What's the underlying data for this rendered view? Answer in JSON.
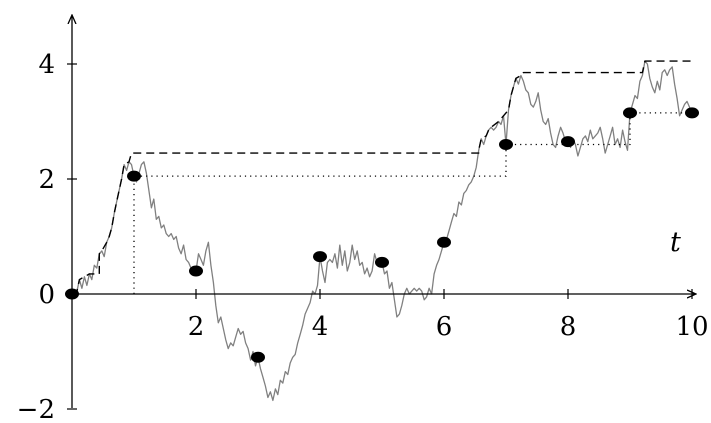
{
  "chart_data": {
    "type": "line",
    "xlabel": "t",
    "ylabel": "",
    "xlim": [
      0,
      10
    ],
    "ylim": [
      -2,
      4.8
    ],
    "x_ticks": [
      {
        "value": 2,
        "label": "2"
      },
      {
        "value": 4,
        "label": "4"
      },
      {
        "value": 6,
        "label": "6"
      },
      {
        "value": 8,
        "label": "8"
      },
      {
        "value": 10,
        "label": "10"
      }
    ],
    "y_ticks": [
      {
        "value": -2,
        "label": "−2"
      },
      {
        "value": 0,
        "label": "0"
      },
      {
        "value": 2,
        "label": "2"
      },
      {
        "value": 4,
        "label": "4"
      }
    ],
    "series": [
      {
        "style": "solid",
        "color": "#808080",
        "points": [
          [
            0,
            0
          ],
          [
            0.08,
            0.05
          ],
          [
            0.12,
            0.25
          ],
          [
            0.16,
            0.1
          ],
          [
            0.2,
            0.3
          ],
          [
            0.24,
            0.15
          ],
          [
            0.28,
            0.35
          ],
          [
            0.32,
            0.25
          ],
          [
            0.36,
            0.5
          ],
          [
            0.4,
            0.45
          ],
          [
            0.44,
            0.7
          ],
          [
            0.48,
            0.75
          ],
          [
            0.52,
            0.65
          ],
          [
            0.56,
            0.9
          ],
          [
            0.6,
            1.0
          ],
          [
            0.64,
            1.15
          ],
          [
            0.68,
            1.4
          ],
          [
            0.72,
            1.6
          ],
          [
            0.76,
            1.8
          ],
          [
            0.8,
            2.0
          ],
          [
            0.84,
            2.25
          ],
          [
            0.88,
            2.15
          ],
          [
            0.92,
            2.3
          ],
          [
            0.96,
            2.25
          ],
          [
            1.0,
            2.05
          ],
          [
            1.04,
            1.95
          ],
          [
            1.08,
            2.1
          ],
          [
            1.12,
            2.25
          ],
          [
            1.16,
            2.3
          ],
          [
            1.2,
            2.1
          ],
          [
            1.24,
            1.8
          ],
          [
            1.28,
            1.5
          ],
          [
            1.32,
            1.65
          ],
          [
            1.36,
            1.3
          ],
          [
            1.4,
            1.35
          ],
          [
            1.44,
            1.15
          ],
          [
            1.48,
            1.2
          ],
          [
            1.52,
            1.05
          ],
          [
            1.56,
            1.0
          ],
          [
            1.6,
            1.05
          ],
          [
            1.64,
            0.95
          ],
          [
            1.68,
            1.0
          ],
          [
            1.72,
            0.8
          ],
          [
            1.76,
            0.7
          ],
          [
            1.8,
            0.85
          ],
          [
            1.84,
            0.6
          ],
          [
            1.88,
            0.55
          ],
          [
            1.92,
            0.45
          ],
          [
            1.96,
            0.45
          ],
          [
            2.0,
            0.4
          ],
          [
            2.04,
            0.7
          ],
          [
            2.08,
            0.6
          ],
          [
            2.12,
            0.5
          ],
          [
            2.16,
            0.75
          ],
          [
            2.2,
            0.9
          ],
          [
            2.24,
            0.5
          ],
          [
            2.28,
            0.2
          ],
          [
            2.32,
            -0.2
          ],
          [
            2.36,
            -0.5
          ],
          [
            2.4,
            -0.4
          ],
          [
            2.44,
            -0.6
          ],
          [
            2.48,
            -0.8
          ],
          [
            2.52,
            -0.95
          ],
          [
            2.56,
            -0.85
          ],
          [
            2.6,
            -0.9
          ],
          [
            2.64,
            -0.75
          ],
          [
            2.68,
            -0.6
          ],
          [
            2.72,
            -0.7
          ],
          [
            2.76,
            -0.65
          ],
          [
            2.8,
            -0.85
          ],
          [
            2.84,
            -0.95
          ],
          [
            2.88,
            -1.15
          ],
          [
            2.92,
            -1.0
          ],
          [
            2.96,
            -1.25
          ],
          [
            3.0,
            -1.1
          ],
          [
            3.04,
            -1.3
          ],
          [
            3.08,
            -1.45
          ],
          [
            3.12,
            -1.6
          ],
          [
            3.16,
            -1.8
          ],
          [
            3.2,
            -1.7
          ],
          [
            3.24,
            -1.85
          ],
          [
            3.28,
            -1.65
          ],
          [
            3.32,
            -1.75
          ],
          [
            3.36,
            -1.5
          ],
          [
            3.4,
            -1.55
          ],
          [
            3.44,
            -1.35
          ],
          [
            3.48,
            -1.4
          ],
          [
            3.52,
            -1.2
          ],
          [
            3.56,
            -1.1
          ],
          [
            3.6,
            -1.05
          ],
          [
            3.64,
            -0.85
          ],
          [
            3.68,
            -0.7
          ],
          [
            3.72,
            -0.55
          ],
          [
            3.76,
            -0.35
          ],
          [
            3.8,
            -0.25
          ],
          [
            3.84,
            -0.15
          ],
          [
            3.88,
            0.05
          ],
          [
            3.92,
            0.0
          ],
          [
            3.96,
            0.15
          ],
          [
            4.0,
            0.65
          ],
          [
            4.04,
            0.4
          ],
          [
            4.08,
            0.2
          ],
          [
            4.12,
            0.55
          ],
          [
            4.16,
            0.6
          ],
          [
            4.2,
            0.55
          ],
          [
            4.24,
            0.7
          ],
          [
            4.28,
            0.45
          ],
          [
            4.32,
            0.85
          ],
          [
            4.36,
            0.5
          ],
          [
            4.4,
            0.75
          ],
          [
            4.44,
            0.4
          ],
          [
            4.48,
            0.55
          ],
          [
            4.52,
            0.85
          ],
          [
            4.56,
            0.6
          ],
          [
            4.6,
            0.75
          ],
          [
            4.64,
            0.5
          ],
          [
            4.68,
            0.55
          ],
          [
            4.72,
            0.35
          ],
          [
            4.76,
            0.45
          ],
          [
            4.8,
            0.3
          ],
          [
            4.84,
            0.4
          ],
          [
            4.88,
            0.7
          ],
          [
            4.92,
            0.55
          ],
          [
            4.96,
            0.5
          ],
          [
            5.0,
            0.55
          ],
          [
            5.04,
            0.35
          ],
          [
            5.08,
            0.4
          ],
          [
            5.12,
            0.1
          ],
          [
            5.16,
            0.2
          ],
          [
            5.2,
            -0.1
          ],
          [
            5.24,
            -0.4
          ],
          [
            5.28,
            -0.35
          ],
          [
            5.32,
            -0.2
          ],
          [
            5.36,
            0.0
          ],
          [
            5.4,
            0.1
          ],
          [
            5.44,
            0.0
          ],
          [
            5.48,
            0.05
          ],
          [
            5.52,
            0.1
          ],
          [
            5.56,
            0.05
          ],
          [
            5.6,
            0.1
          ],
          [
            5.64,
            0.05
          ],
          [
            5.68,
            -0.1
          ],
          [
            5.72,
            -0.05
          ],
          [
            5.76,
            0.1
          ],
          [
            5.8,
            0.0
          ],
          [
            5.84,
            0.35
          ],
          [
            5.88,
            0.5
          ],
          [
            5.92,
            0.6
          ],
          [
            5.96,
            0.75
          ],
          [
            6.0,
            0.9
          ],
          [
            6.04,
            0.95
          ],
          [
            6.08,
            1.1
          ],
          [
            6.12,
            1.25
          ],
          [
            6.16,
            1.4
          ],
          [
            6.2,
            1.35
          ],
          [
            6.24,
            1.6
          ],
          [
            6.28,
            1.55
          ],
          [
            6.32,
            1.75
          ],
          [
            6.36,
            1.8
          ],
          [
            6.4,
            1.9
          ],
          [
            6.44,
            1.95
          ],
          [
            6.48,
            2.05
          ],
          [
            6.52,
            2.2
          ],
          [
            6.56,
            2.5
          ],
          [
            6.6,
            2.7
          ],
          [
            6.64,
            2.6
          ],
          [
            6.68,
            2.75
          ],
          [
            6.72,
            2.85
          ],
          [
            6.76,
            2.9
          ],
          [
            6.8,
            2.85
          ],
          [
            6.84,
            2.9
          ],
          [
            6.88,
            3.0
          ],
          [
            6.92,
            2.95
          ],
          [
            6.96,
            3.1
          ],
          [
            7.0,
            2.6
          ],
          [
            7.04,
            3.2
          ],
          [
            7.08,
            3.45
          ],
          [
            7.12,
            3.6
          ],
          [
            7.16,
            3.75
          ],
          [
            7.2,
            3.65
          ],
          [
            7.24,
            3.8
          ],
          [
            7.28,
            3.7
          ],
          [
            7.32,
            3.55
          ],
          [
            7.36,
            3.5
          ],
          [
            7.4,
            3.3
          ],
          [
            7.44,
            3.25
          ],
          [
            7.48,
            3.35
          ],
          [
            7.52,
            3.5
          ],
          [
            7.56,
            3.2
          ],
          [
            7.6,
            3.0
          ],
          [
            7.64,
            2.95
          ],
          [
            7.68,
            3.05
          ],
          [
            7.72,
            2.8
          ],
          [
            7.76,
            2.6
          ],
          [
            7.8,
            2.55
          ],
          [
            7.84,
            2.75
          ],
          [
            7.88,
            2.9
          ],
          [
            7.92,
            2.8
          ],
          [
            7.96,
            2.65
          ],
          [
            8.0,
            2.7
          ],
          [
            8.04,
            2.55
          ],
          [
            8.08,
            2.7
          ],
          [
            8.12,
            2.6
          ],
          [
            8.16,
            2.4
          ],
          [
            8.2,
            2.55
          ],
          [
            8.24,
            2.7
          ],
          [
            8.28,
            2.75
          ],
          [
            8.32,
            2.65
          ],
          [
            8.36,
            2.85
          ],
          [
            8.4,
            2.7
          ],
          [
            8.44,
            2.75
          ],
          [
            8.48,
            2.8
          ],
          [
            8.52,
            2.9
          ],
          [
            8.56,
            2.7
          ],
          [
            8.6,
            2.45
          ],
          [
            8.64,
            2.6
          ],
          [
            8.68,
            2.75
          ],
          [
            8.72,
            2.9
          ],
          [
            8.76,
            2.6
          ],
          [
            8.8,
            2.7
          ],
          [
            8.84,
            2.55
          ],
          [
            8.88,
            2.85
          ],
          [
            8.92,
            2.65
          ],
          [
            8.96,
            2.5
          ],
          [
            9.0,
            3.15
          ],
          [
            9.04,
            3.3
          ],
          [
            9.08,
            3.45
          ],
          [
            9.12,
            3.4
          ],
          [
            9.16,
            3.7
          ],
          [
            9.2,
            3.8
          ],
          [
            9.24,
            4.05
          ],
          [
            9.28,
            4.0
          ],
          [
            9.32,
            3.75
          ],
          [
            9.36,
            3.6
          ],
          [
            9.4,
            3.5
          ],
          [
            9.44,
            3.7
          ],
          [
            9.48,
            3.55
          ],
          [
            9.52,
            3.85
          ],
          [
            9.56,
            3.9
          ],
          [
            9.6,
            3.8
          ],
          [
            9.64,
            3.9
          ],
          [
            9.68,
            3.95
          ],
          [
            9.72,
            3.65
          ],
          [
            9.76,
            3.4
          ],
          [
            9.8,
            3.1
          ],
          [
            9.84,
            3.2
          ],
          [
            9.88,
            3.3
          ],
          [
            9.92,
            3.35
          ],
          [
            9.96,
            3.25
          ],
          [
            10.0,
            3.15
          ]
        ]
      },
      {
        "style": "dashed",
        "color": "#000000",
        "points": [
          [
            0,
            0
          ],
          [
            0.08,
            0.05
          ],
          [
            0.12,
            0.25
          ],
          [
            0.2,
            0.3
          ],
          [
            0.28,
            0.35
          ],
          [
            0.44,
            0.35
          ],
          [
            0.44,
            0.7
          ],
          [
            0.48,
            0.75
          ],
          [
            0.56,
            0.9
          ],
          [
            0.6,
            1.0
          ],
          [
            0.64,
            1.15
          ],
          [
            0.68,
            1.4
          ],
          [
            0.72,
            1.6
          ],
          [
            0.76,
            1.8
          ],
          [
            0.8,
            2.0
          ],
          [
            0.84,
            2.25
          ],
          [
            0.92,
            2.3
          ],
          [
            0.96,
            2.45
          ],
          [
            6.56,
            2.45
          ],
          [
            6.56,
            2.5
          ],
          [
            6.6,
            2.7
          ],
          [
            6.68,
            2.75
          ],
          [
            6.72,
            2.85
          ],
          [
            6.76,
            2.9
          ],
          [
            6.88,
            3.0
          ],
          [
            6.96,
            3.1
          ],
          [
            7.04,
            3.2
          ],
          [
            7.08,
            3.45
          ],
          [
            7.12,
            3.6
          ],
          [
            7.16,
            3.75
          ],
          [
            7.24,
            3.8
          ],
          [
            7.28,
            3.85
          ],
          [
            9.2,
            3.85
          ],
          [
            9.24,
            4.05
          ],
          [
            10.0,
            4.05
          ]
        ]
      },
      {
        "style": "dotted",
        "color": "#000000",
        "points": [
          [
            1,
            0
          ],
          [
            1,
            2.05
          ],
          [
            7,
            2.05
          ],
          [
            7,
            2.6
          ],
          [
            9,
            2.6
          ],
          [
            9,
            3.15
          ],
          [
            10,
            3.15
          ]
        ]
      }
    ],
    "markers": [
      {
        "x": 0,
        "y": 0
      },
      {
        "x": 1,
        "y": 2.05
      },
      {
        "x": 2,
        "y": 0.4
      },
      {
        "x": 3,
        "y": -1.1
      },
      {
        "x": 4,
        "y": 0.65
      },
      {
        "x": 5,
        "y": 0.55
      },
      {
        "x": 6,
        "y": 0.9
      },
      {
        "x": 7,
        "y": 2.6
      },
      {
        "x": 8,
        "y": 2.65
      },
      {
        "x": 9,
        "y": 3.15
      },
      {
        "x": 10,
        "y": 3.15
      }
    ]
  }
}
